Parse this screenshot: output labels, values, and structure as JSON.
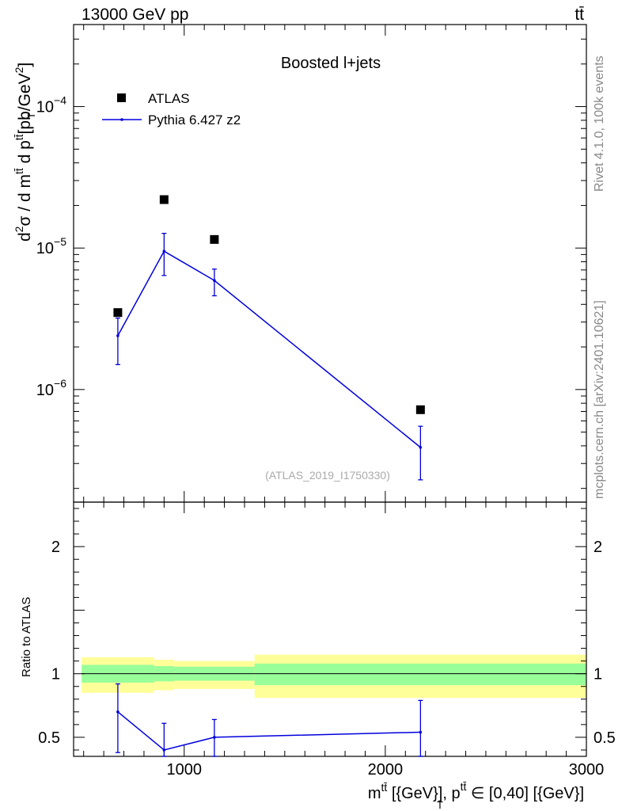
{
  "chart_data": {
    "type": "line",
    "header_left": "13000 GeV pp",
    "header_right": "tt̄",
    "title": "Boosted l+jets",
    "watermark": "(ATLAS_2019_I1750330)",
    "side_text_top": "Rivet 4.1.0,  100k events",
    "side_text_bottom": "mcplots.cern.ch [arXiv:2401.10621]",
    "ylabel": {
      "d": "d",
      "two": "2",
      "sigma": "σ / d m",
      "tt": "tt̄",
      "dp": " d p",
      "units": "[pb/GeV",
      "unit_exp": "2",
      "close": "]",
      "T": "T"
    },
    "xlabel": {
      "m": "m",
      "tt": "tt̄",
      "mid": " [{GeV}], p",
      "T": "T",
      "tail": " ∈ [0,40] [{GeV}]"
    },
    "ratio_ylabel": "Ratio to ATLAS",
    "xlim": [
      450,
      3000
    ],
    "ylim_main": [
      1.6e-07,
      0.00038
    ],
    "ylim_ratio": [
      0.35,
      2.35
    ],
    "x_ticks": [
      1000,
      2000,
      3000
    ],
    "x_tick_labels": [
      "1000",
      "2000",
      "3000"
    ],
    "main_y_ticks": [
      {
        "value": 1e-06,
        "base": "10",
        "exp": "−6"
      },
      {
        "value": 1e-05,
        "base": "10",
        "exp": "−5"
      },
      {
        "value": 0.0001,
        "base": "10",
        "exp": "−4"
      }
    ],
    "ratio_y_ticks": [
      {
        "value": 0.5,
        "label": "0.5"
      },
      {
        "value": 1,
        "label": "1"
      },
      {
        "value": 2,
        "label": "2"
      }
    ],
    "legend": [
      {
        "name": "ATLAS",
        "style": "square-marker"
      },
      {
        "name": "Pythia 6.427 z2",
        "style": "line"
      }
    ],
    "bin_edges": [
      490,
      850,
      950,
      1350,
      3000
    ],
    "data": {
      "name": "ATLAS",
      "x": [
        670,
        900,
        1150,
        2175
      ],
      "y": [
        3.5e-06,
        2.2e-05,
        1.15e-05,
        7.2e-07
      ]
    },
    "mc": {
      "name": "Pythia 6.427 z2",
      "color": "#0000dd",
      "x": [
        670,
        900,
        1150,
        2175
      ],
      "y": [
        2.4e-06,
        9.5e-06,
        5.9e-06,
        3.9e-07
      ],
      "y_low": [
        1.5e-06,
        6.4e-06,
        4.6e-06,
        2.3e-07
      ],
      "y_high": [
        3.2e-06,
        1.27e-05,
        7.1e-06,
        5.5e-07
      ]
    },
    "ratio": {
      "x": [
        670,
        900,
        1150,
        2175
      ],
      "y": [
        0.7,
        0.4,
        0.5,
        0.54
      ],
      "y_low": [
        0.38,
        0.35,
        0.35,
        0.35
      ],
      "y_high": [
        0.92,
        0.61,
        0.64,
        0.79
      ]
    },
    "bands": {
      "yellow_color": "#ffff99",
      "green_color": "#99ff99",
      "yellow": [
        {
          "x0": 490,
          "x1": 850,
          "lo": 0.85,
          "hi": 1.13
        },
        {
          "x0": 850,
          "x1": 950,
          "lo": 0.87,
          "hi": 1.11
        },
        {
          "x0": 950,
          "x1": 1350,
          "lo": 0.88,
          "hi": 1.1
        },
        {
          "x0": 1350,
          "x1": 3000,
          "lo": 0.81,
          "hi": 1.15
        }
      ],
      "green": [
        {
          "x0": 490,
          "x1": 850,
          "lo": 0.93,
          "hi": 1.07
        },
        {
          "x0": 850,
          "x1": 950,
          "lo": 0.94,
          "hi": 1.06
        },
        {
          "x0": 950,
          "x1": 1350,
          "lo": 0.945,
          "hi": 1.055
        },
        {
          "x0": 1350,
          "x1": 3000,
          "lo": 0.91,
          "hi": 1.08
        }
      ]
    }
  }
}
